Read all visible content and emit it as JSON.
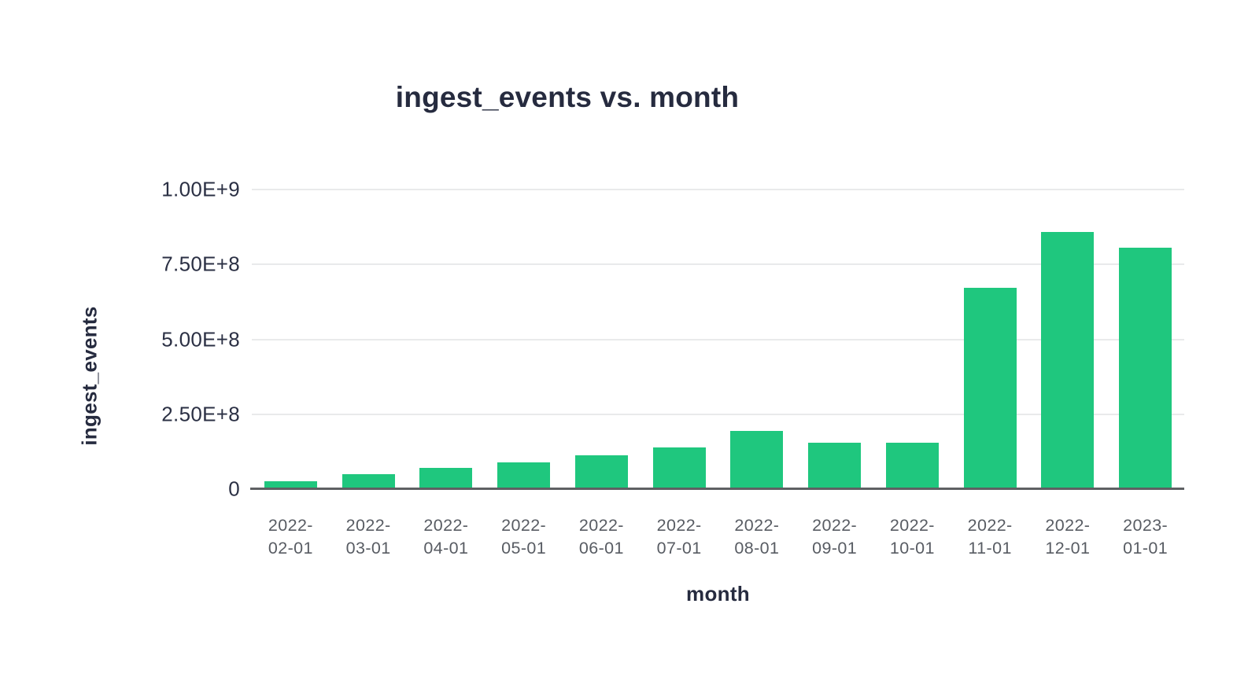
{
  "chart": {
    "title": "ingest_events vs. month",
    "y_axis_title": "ingest_events",
    "x_axis_title": "month",
    "y_ticks": [
      "1.00E+9",
      "7.50E+8",
      "5.00E+8",
      "2.50E+8",
      "0"
    ],
    "colors": {
      "bar": "#1fc77e",
      "title_text": "#262b3f",
      "y_tick_text": "#2b3044",
      "x_tick_text": "#585c63",
      "gridline": "#e9eaeb",
      "axis_line": "#5e6063",
      "background": "#ffffff"
    }
  },
  "chart_data": {
    "type": "bar",
    "title": "ingest_events vs. month",
    "xlabel": "month",
    "ylabel": "ingest_events",
    "categories": [
      "2022-02-01",
      "2022-03-01",
      "2022-04-01",
      "2022-05-01",
      "2022-06-01",
      "2022-07-01",
      "2022-08-01",
      "2022-09-01",
      "2022-10-01",
      "2022-11-01",
      "2022-12-01",
      "2023-01-01"
    ],
    "values": [
      25000000,
      50000000,
      72000000,
      88000000,
      113000000,
      138000000,
      193000000,
      155000000,
      155000000,
      673000000,
      858000000,
      805000000
    ],
    "ylim": [
      0,
      1000000000
    ],
    "y_tick_labels": [
      "0",
      "2.50E+8",
      "5.00E+8",
      "7.50E+8",
      "1.00E+9"
    ],
    "grid": "horizontal",
    "legend": "none",
    "bar_color": "#1fc77e"
  }
}
